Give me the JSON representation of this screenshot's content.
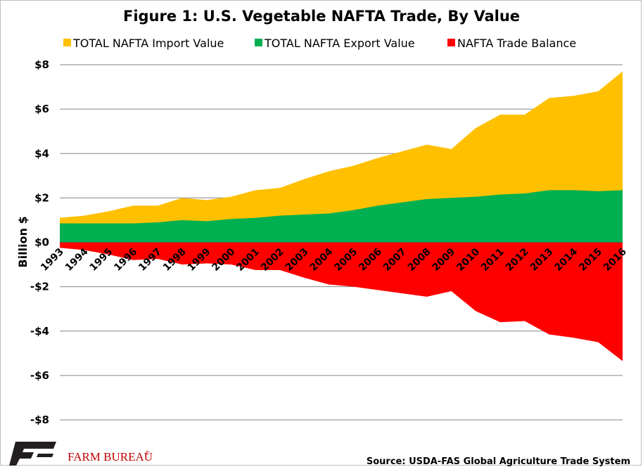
{
  "chart_data": {
    "type": "area",
    "title": "Figure 1: U.S. Vegetable  NAFTA Trade, By Value",
    "ylabel": "Billion $",
    "xlabel": "",
    "ylim": [
      -8,
      8
    ],
    "yticks": [
      "$8",
      "$6",
      "$4",
      "$2",
      "$0",
      "-$2",
      "-$4",
      "-$6",
      "-$8"
    ],
    "ytick_values": [
      8,
      6,
      4,
      2,
      0,
      -2,
      -4,
      -6,
      -8
    ],
    "grid": true,
    "legend_position": "top",
    "categories": [
      "1993",
      "1994",
      "1995",
      "1996",
      "1997",
      "1998",
      "1999",
      "2000",
      "2001",
      "2002",
      "2003",
      "2004",
      "2005",
      "2006",
      "2007",
      "2008",
      "2009",
      "2010",
      "2011",
      "2012",
      "2013",
      "2014",
      "2015",
      "2016"
    ],
    "series": [
      {
        "name": "TOTAL NAFTA Import Value",
        "color": "#FFC000",
        "values": [
          1.1,
          1.2,
          1.4,
          1.65,
          1.65,
          2.0,
          1.9,
          2.05,
          2.35,
          2.45,
          2.85,
          3.2,
          3.45,
          3.8,
          4.1,
          4.4,
          4.2,
          5.15,
          5.75,
          5.75,
          6.5,
          6.6,
          6.8,
          7.7
        ]
      },
      {
        "name": "TOTAL NAFTA Export Value",
        "color": "#00B050",
        "values": [
          0.85,
          0.85,
          0.85,
          0.85,
          0.9,
          1.0,
          0.95,
          1.05,
          1.1,
          1.2,
          1.25,
          1.3,
          1.45,
          1.65,
          1.8,
          1.95,
          2.0,
          2.05,
          2.15,
          2.2,
          2.35,
          2.35,
          2.3,
          2.35
        ]
      },
      {
        "name": "NAFTA Trade Balance",
        "color": "#FF0000",
        "values": [
          -0.25,
          -0.35,
          -0.55,
          -0.8,
          -0.75,
          -1.0,
          -0.95,
          -1.0,
          -1.25,
          -1.25,
          -1.6,
          -1.9,
          -2.0,
          -2.15,
          -2.3,
          -2.45,
          -2.2,
          -3.1,
          -3.6,
          -3.55,
          -4.15,
          -4.3,
          -4.5,
          -5.35
        ]
      }
    ]
  },
  "source_text": "Source: USDA-FAS Global Agriculture Trade System",
  "logo": {
    "name": "FARM BUREAU",
    "mark": "®"
  }
}
